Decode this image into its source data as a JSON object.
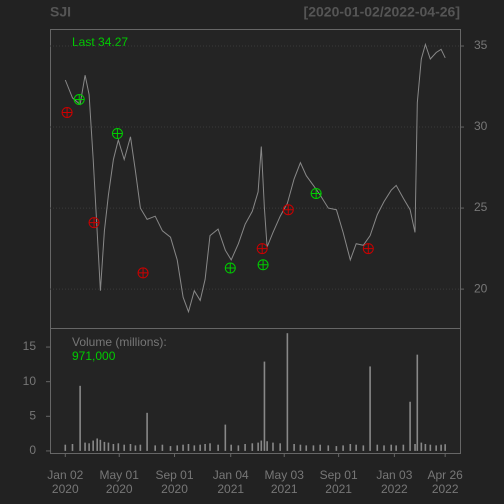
{
  "chart_data": {
    "type": "line",
    "title": "SJI",
    "date_range": "[2020-01-02/2022-04-26]",
    "last_label": "Last 34.27",
    "volume_label": "Volume (millions):",
    "last_volume": "971,000",
    "color": "#888888",
    "grid": true,
    "xlim": [
      "2019-11-29",
      "2022-05-29"
    ],
    "xticks": [
      {
        "value": "2020-01-02",
        "label": [
          "Jan 02",
          "2020"
        ]
      },
      {
        "value": "2020-05-01",
        "label": [
          "May 01",
          "2020"
        ]
      },
      {
        "value": "2020-09-01",
        "label": [
          "Sep 01",
          "2020"
        ]
      },
      {
        "value": "2021-01-04",
        "label": [
          "Jan 04",
          "2021"
        ]
      },
      {
        "value": "2021-05-03",
        "label": [
          "May 03",
          "2021"
        ]
      },
      {
        "value": "2021-09-01",
        "label": [
          "Sep 01",
          "2021"
        ]
      },
      {
        "value": "2022-01-03",
        "label": [
          "Jan 03",
          "2022"
        ]
      },
      {
        "value": "2022-04-26",
        "label": [
          "Apr 26",
          "2022"
        ]
      }
    ],
    "ylim": [
      17.6,
      36.05
    ],
    "yticks": [
      20,
      25,
      30,
      35
    ],
    "y2lim": [
      -0.3,
      17.75
    ],
    "y2ticks": [
      0,
      5,
      10,
      15
    ],
    "x": [
      "2020-01-02",
      "2020-01-18",
      "2020-02-04",
      "2020-02-15",
      "2020-02-24",
      "2020-03-04",
      "2020-03-13",
      "2020-03-20",
      "2020-03-29",
      "2020-04-07",
      "2020-04-18",
      "2020-04-29",
      "2020-05-12",
      "2020-05-26",
      "2020-06-06",
      "2020-06-17",
      "2020-07-02",
      "2020-07-20",
      "2020-08-05",
      "2020-08-23",
      "2020-09-07",
      "2020-09-20",
      "2020-10-02",
      "2020-10-15",
      "2020-10-28",
      "2020-11-08",
      "2020-11-19",
      "2020-12-07",
      "2020-12-23",
      "2021-01-05",
      "2021-01-21",
      "2021-02-05",
      "2021-02-21",
      "2021-03-06",
      "2021-03-13",
      "2021-03-20",
      "2021-03-26",
      "2021-04-08",
      "2021-04-24",
      "2021-05-10",
      "2021-05-25",
      "2021-06-08",
      "2021-06-21",
      "2021-07-07",
      "2021-07-22",
      "2021-08-09",
      "2021-08-27",
      "2021-09-11",
      "2021-09-27",
      "2021-10-10",
      "2021-10-26",
      "2021-11-10",
      "2021-11-26",
      "2021-12-11",
      "2021-12-27",
      "2022-01-07",
      "2022-01-23",
      "2022-02-07",
      "2022-02-18",
      "2022-02-23",
      "2022-03-04",
      "2022-03-13",
      "2022-03-24",
      "2022-04-06",
      "2022-04-17",
      "2022-04-26"
    ],
    "series": [
      {
        "name": "Price",
        "color": "#888888",
        "values": [
          32.9,
          31.8,
          31.4,
          33.2,
          32.0,
          28.0,
          23.5,
          19.9,
          23.6,
          25.8,
          28.0,
          29.2,
          28.0,
          29.4,
          27.3,
          25.0,
          24.3,
          24.5,
          23.6,
          23.2,
          21.8,
          19.5,
          18.6,
          19.9,
          19.3,
          20.6,
          23.3,
          23.7,
          22.4,
          21.8,
          22.8,
          24.0,
          24.8,
          26.0,
          28.8,
          25.0,
          22.6,
          23.5,
          24.5,
          25.3,
          26.8,
          27.8,
          27.0,
          26.4,
          25.8,
          25.0,
          24.9,
          23.5,
          21.8,
          22.8,
          22.7,
          23.3,
          24.6,
          25.4,
          26.1,
          26.4,
          25.6,
          24.9,
          23.5,
          31.5,
          34.2,
          35.1,
          34.2,
          34.6,
          34.8,
          34.27
        ]
      },
      {
        "name": "Volume",
        "color": "#888888",
        "axis": "y2",
        "values": [
          0.9,
          1.0,
          9.4,
          1.2,
          1.1,
          1.5,
          1.8,
          1.6,
          1.3,
          1.2,
          1.0,
          1.1,
          0.9,
          1.0,
          0.8,
          0.9,
          5.5,
          0.8,
          0.9,
          0.7,
          0.8,
          0.9,
          1.0,
          0.8,
          0.9,
          1.0,
          1.1,
          0.9,
          3.8,
          0.9,
          0.8,
          1.0,
          1.1,
          1.2,
          1.5,
          12.9,
          1.4,
          1.2,
          1.1,
          17.0,
          1.0,
          0.9,
          0.8,
          0.8,
          0.9,
          0.8,
          0.7,
          0.8,
          1.0,
          0.9,
          0.8,
          12.2,
          0.9,
          0.8,
          0.9,
          0.8,
          0.9,
          7.1,
          1.0,
          13.9,
          1.2,
          1.0,
          0.9,
          0.8,
          0.9,
          0.97
        ]
      }
    ],
    "markers": [
      {
        "color": "#cc0000",
        "x": [
          "2020-01-06",
          "2020-03-06",
          "2020-06-23",
          "2021-03-15",
          "2021-05-12",
          "2021-11-06"
        ],
        "values": [
          30.9,
          24.1,
          21.0,
          22.5,
          24.9,
          22.5
        ]
      },
      {
        "color": "#00cc00",
        "x": [
          "2020-02-02",
          "2020-04-27",
          "2021-01-03",
          "2021-03-17",
          "2021-07-13"
        ],
        "values": [
          31.7,
          29.6,
          21.3,
          21.5,
          25.9
        ]
      }
    ]
  }
}
